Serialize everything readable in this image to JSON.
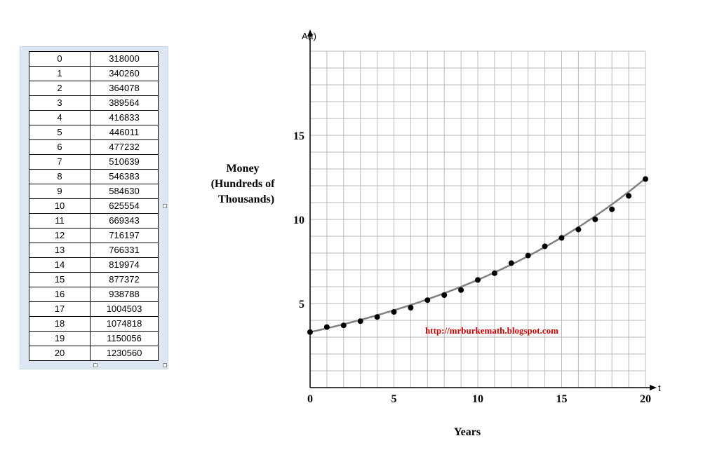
{
  "table": {
    "rows": [
      [
        "0",
        "318000"
      ],
      [
        "1",
        "340260"
      ],
      [
        "2",
        "364078"
      ],
      [
        "3",
        "389564"
      ],
      [
        "4",
        "416833"
      ],
      [
        "5",
        "446011"
      ],
      [
        "6",
        "477232"
      ],
      [
        "7",
        "510639"
      ],
      [
        "8",
        "546383"
      ],
      [
        "9",
        "584630"
      ],
      [
        "10",
        "625554"
      ],
      [
        "11",
        "669343"
      ],
      [
        "12",
        "716197"
      ],
      [
        "13",
        "766331"
      ],
      [
        "14",
        "819974"
      ],
      [
        "15",
        "877372"
      ],
      [
        "16",
        "938788"
      ],
      [
        "17",
        "1004503"
      ],
      [
        "18",
        "1074818"
      ],
      [
        "19",
        "1150056"
      ],
      [
        "20",
        "1230560"
      ]
    ]
  },
  "chart_data": {
    "type": "scatter",
    "ylabel_lines": [
      "Money",
      "(Hundreds of",
      "Thousands)"
    ],
    "xlabel": "Years",
    "x_axis_var": "t",
    "y_axis_var": "A(t)",
    "xlim": [
      0,
      20
    ],
    "ylim": [
      0,
      20
    ],
    "grid": true,
    "x_ticks": [
      0,
      5,
      10,
      15,
      20
    ],
    "y_ticks": [
      5,
      10,
      15
    ],
    "points": {
      "x": [
        0,
        1,
        2,
        3,
        4,
        5,
        6,
        7,
        8,
        9,
        10,
        11,
        12,
        13,
        14,
        15,
        16,
        17,
        18,
        19,
        20
      ],
      "y": [
        3.3,
        3.6,
        3.7,
        3.95,
        4.2,
        4.5,
        4.75,
        5.2,
        5.5,
        5.8,
        6.4,
        6.8,
        7.4,
        7.85,
        8.4,
        8.9,
        9.4,
        10.0,
        10.6,
        11.4,
        12.4
      ]
    },
    "fit_curve": {
      "type": "exponential",
      "a": 3.3,
      "b": 1.0686
    },
    "annotation": "http://mrburkemath.blogspot.com",
    "colors": {
      "grid": "#bbbbbb",
      "curve": "#808080",
      "points": "#000000",
      "annotation": "#cc0000"
    }
  }
}
